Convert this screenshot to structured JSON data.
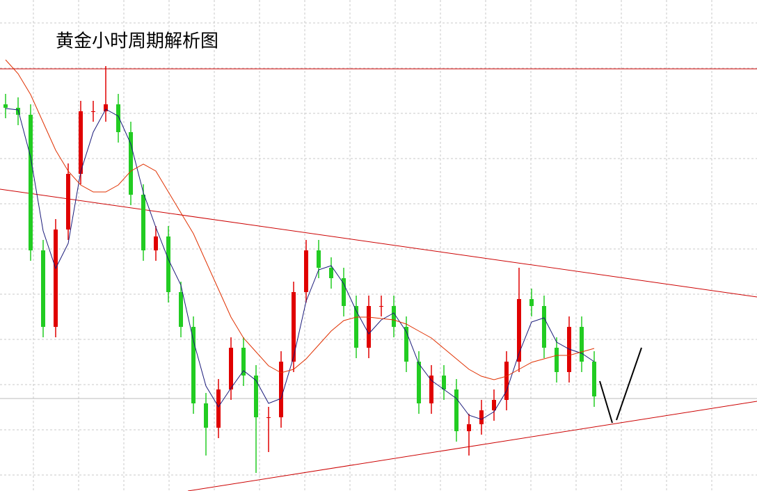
{
  "chart_data": {
    "type": "candlestick",
    "title": "黄金小时周期解析图",
    "ylim": [
      0,
      706
    ],
    "grid": true,
    "up_color": "#e00000",
    "down_color": "#22cc22",
    "open": [
      556,
      551,
      541,
      346,
      236,
      376,
      456,
      546,
      546,
      556,
      516,
      426,
      346,
      366,
      286,
      236,
      126,
      91,
      146,
      206,
      166,
      106,
      106,
      186,
      286,
      346,
      321,
      306,
      266,
      206,
      266,
      266,
      236,
      186,
      126,
      166,
      146,
      86,
      96,
      116,
      131,
      186,
      276,
      266,
      206,
      171,
      236,
      186
    ],
    "high": [
      571,
      566,
      556,
      361,
      391,
      471,
      561,
      561,
      611,
      571,
      531,
      441,
      381,
      381,
      301,
      251,
      141,
      161,
      221,
      221,
      181,
      121,
      201,
      301,
      361,
      361,
      336,
      321,
      281,
      281,
      281,
      281,
      251,
      201,
      181,
      181,
      161,
      111,
      131,
      146,
      201,
      321,
      291,
      281,
      221,
      251,
      251,
      201
    ],
    "low": [
      536,
      526,
      331,
      221,
      221,
      361,
      441,
      531,
      531,
      501,
      411,
      331,
      331,
      271,
      221,
      111,
      51,
      76,
      131,
      151,
      26,
      56,
      91,
      171,
      271,
      306,
      291,
      251,
      191,
      191,
      251,
      221,
      171,
      111,
      111,
      131,
      71,
      51,
      81,
      101,
      116,
      171,
      251,
      191,
      156,
      156,
      171,
      121
    ],
    "close": [
      551,
      541,
      346,
      236,
      376,
      456,
      546,
      546,
      556,
      516,
      426,
      346,
      366,
      286,
      236,
      126,
      91,
      146,
      206,
      166,
      106,
      106,
      186,
      286,
      346,
      321,
      306,
      266,
      206,
      266,
      266,
      236,
      186,
      126,
      166,
      146,
      86,
      96,
      116,
      131,
      186,
      276,
      266,
      206,
      171,
      236,
      186,
      136
    ],
    "series": [
      {
        "color": "#1a1a7a",
        "values": [
          550,
          548,
          480,
          374,
          320,
          356,
          459,
          516,
          549,
          539,
          499,
          429,
          379,
          333,
          296,
          216,
          151,
          121,
          148,
          173,
          159,
          126,
          133,
          193,
          273,
          318,
          324,
          298,
          259,
          226,
          246,
          256,
          229,
          183,
          159,
          146,
          133,
          109,
          103,
          114,
          144,
          198,
          243,
          249,
          214,
          204,
          198,
          186
        ]
      },
      {
        "color": "#e03000",
        "values": [
          620,
          600,
          570,
          530,
          490,
          460,
          440,
          430,
          430,
          440,
          460,
          470,
          460,
          430,
          400,
          370,
          330,
          290,
          250,
          220,
          200,
          180,
          170,
          175,
          190,
          210,
          230,
          245,
          250,
          250,
          248,
          246,
          240,
          230,
          220,
          205,
          190,
          175,
          165,
          160,
          165,
          175,
          185,
          190,
          195,
          195,
          200,
          205
        ]
      }
    ]
  }
}
